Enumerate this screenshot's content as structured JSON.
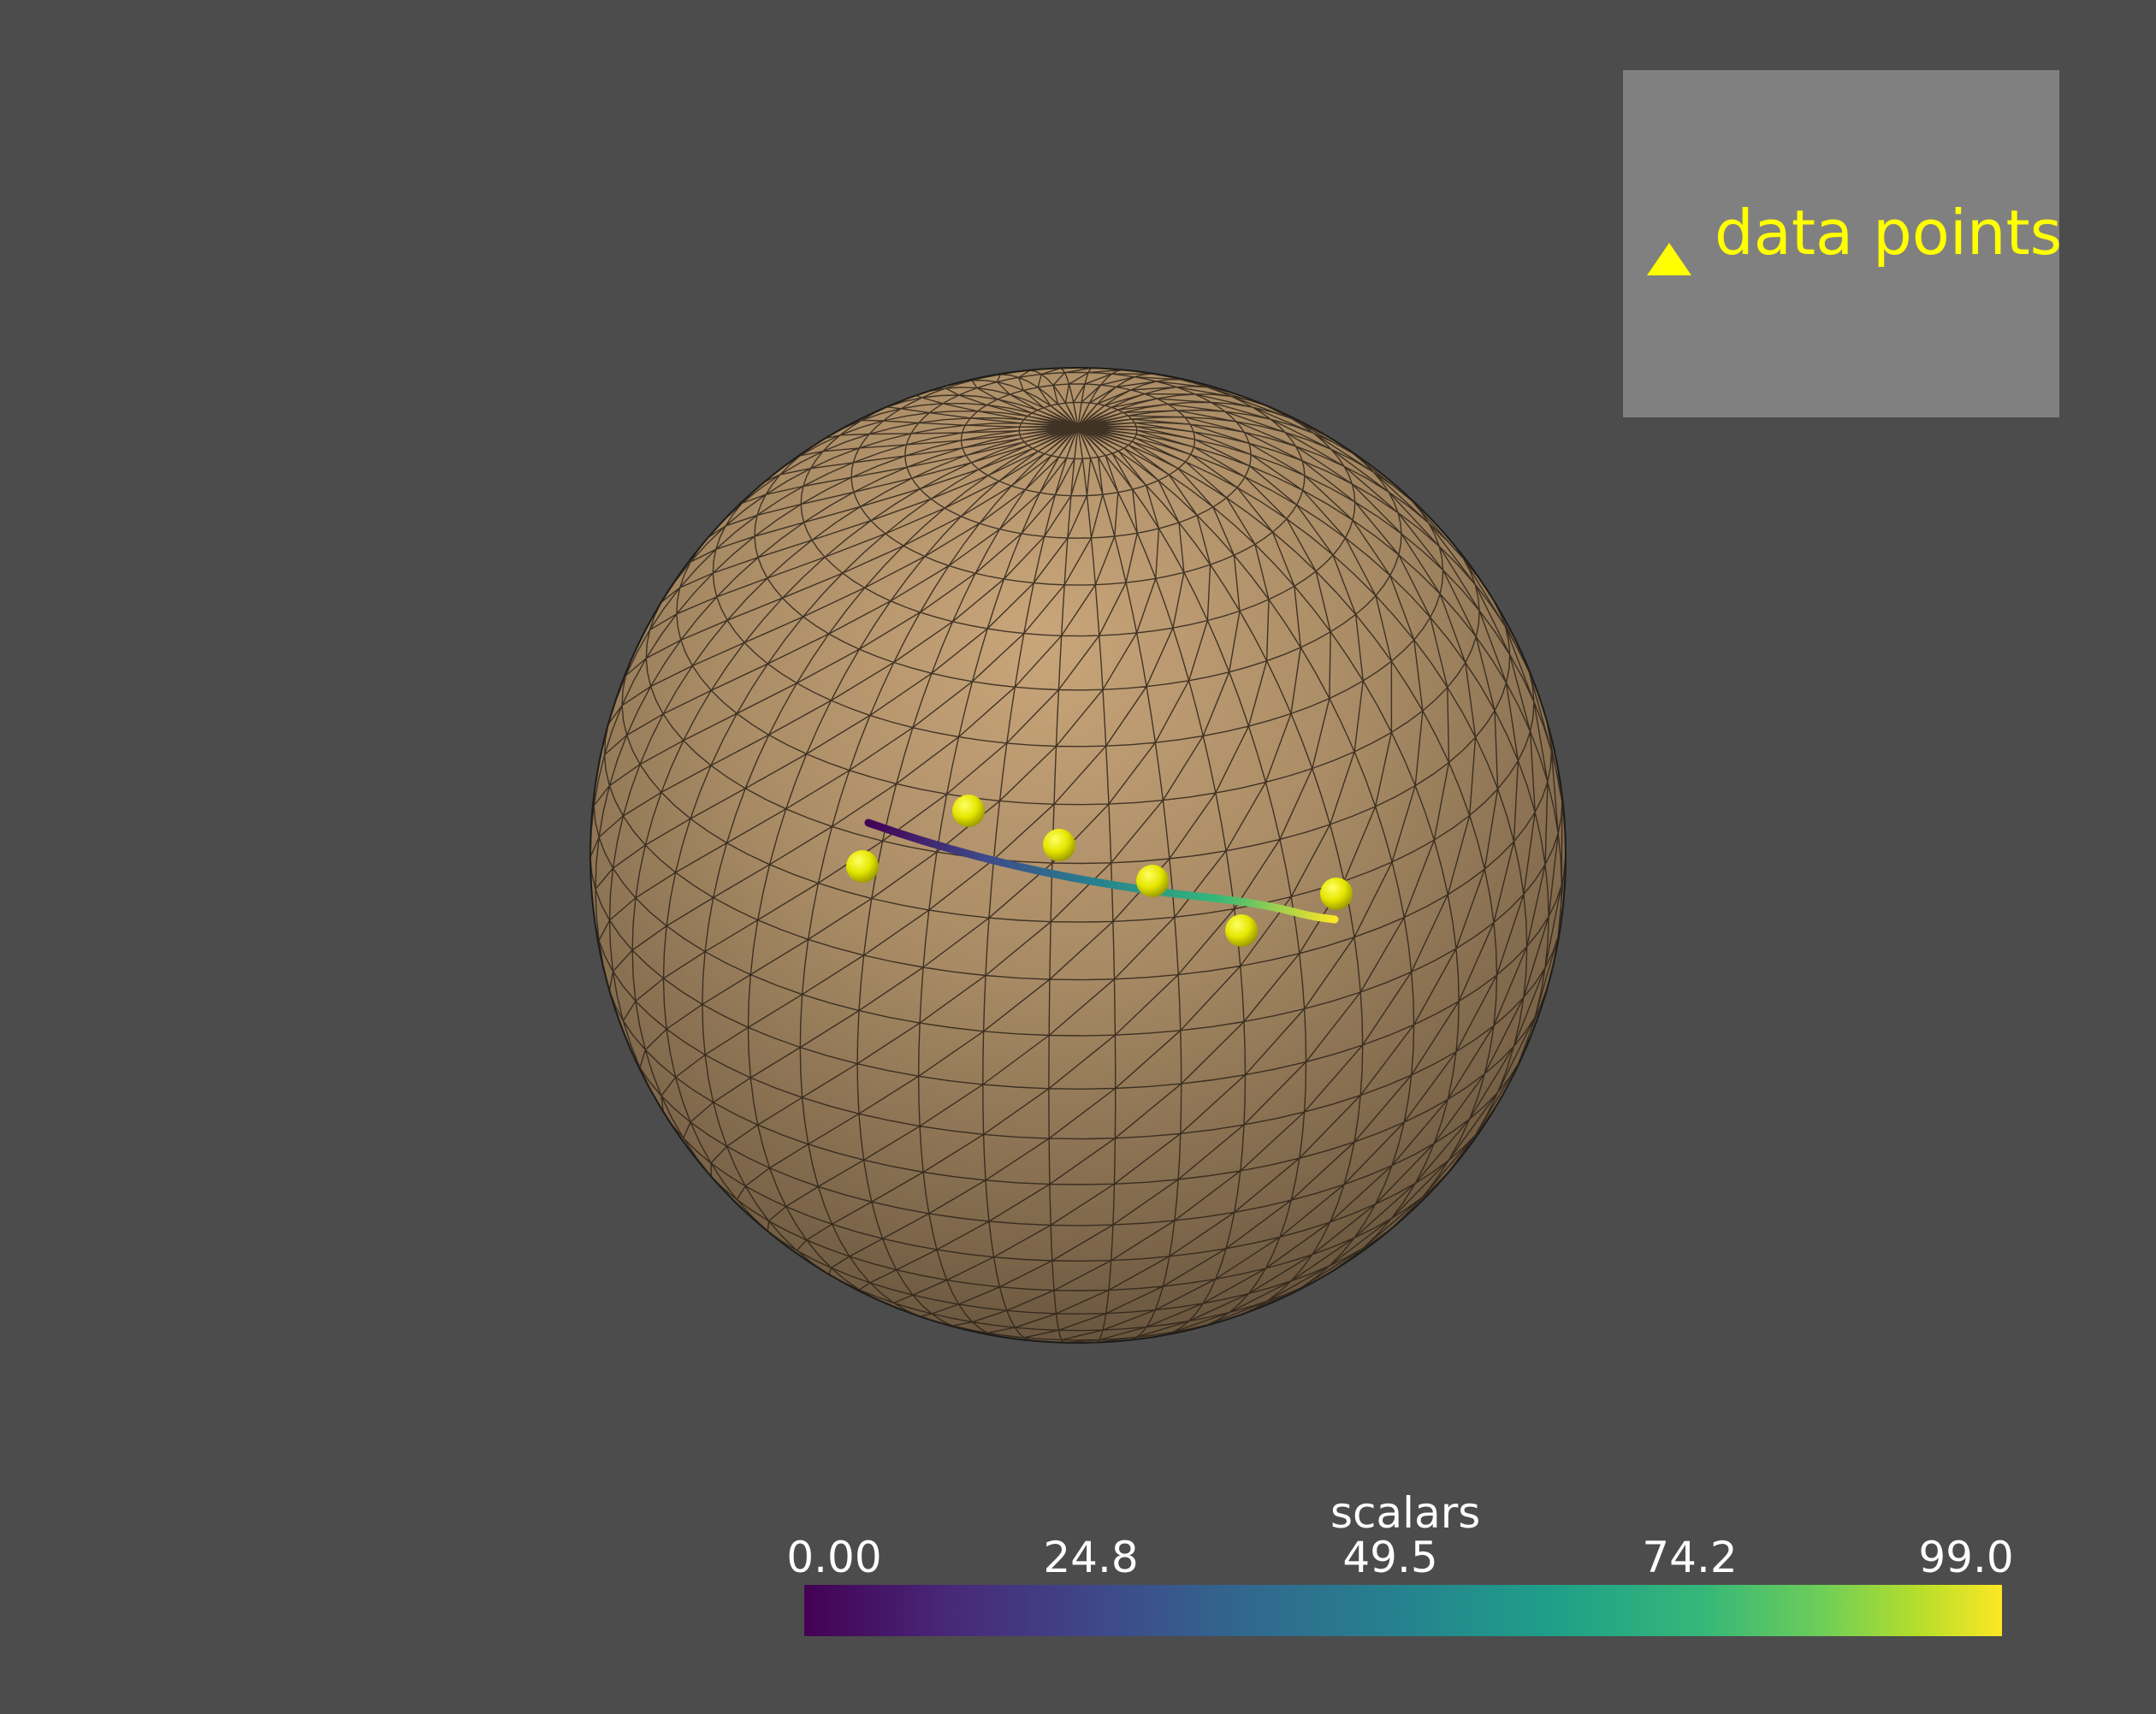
{
  "scene": {
    "background_color": "#4c4c4c",
    "sphere_color": "#c8a57c",
    "sphere_edge_color": "#000000",
    "point_color": "#ffff00",
    "point_count": 6,
    "line_colormap": "viridis"
  },
  "legend": {
    "label": "data points",
    "marker": "triangle-icon",
    "text_color": "#ffff00",
    "background": "#808080"
  },
  "colorbar": {
    "title": "scalars",
    "ticks": [
      "0.00",
      "24.8",
      "49.5",
      "74.2",
      "99.0"
    ],
    "range": [
      0.0,
      99.0
    ],
    "colormap": "viridis"
  }
}
